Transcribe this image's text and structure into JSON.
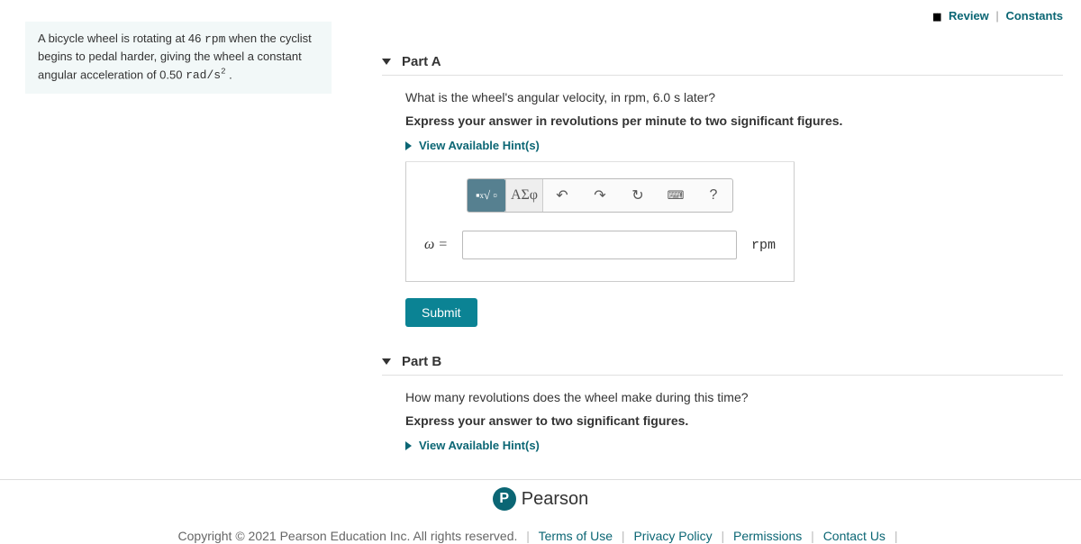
{
  "topLinks": {
    "review": "Review",
    "constants": "Constants"
  },
  "problem": {
    "html": "A bicycle wheel is rotating at 46 <span class='tt'>rpm</span> when the cyclist begins to pedal harder, giving the wheel a constant angular acceleration of 0.50 <span class='tt'>rad/s<sup>2</sup></span> ."
  },
  "partA": {
    "title": "Part A",
    "question": "What is the wheel's angular velocity, in rpm, 6.0 s later?",
    "instruction": "Express your answer in revolutions per minute to two significant figures.",
    "hintsLabel": "View Available Hint(s)",
    "toolbar": {
      "templates": "x√□",
      "greek": "ΑΣφ",
      "undo": "↶",
      "redo": "↷",
      "reset": "↻",
      "keyboard": "⌨",
      "help": "?"
    },
    "varLabel": "ω =",
    "unit": "rpm",
    "submit": "Submit"
  },
  "partB": {
    "title": "Part B",
    "question": "How many revolutions does the wheel make during this time?",
    "instruction": "Express your answer to two significant figures.",
    "hintsLabel": "View Available Hint(s)"
  },
  "footer": {
    "brand": "Pearson",
    "copyright": "Copyright © 2021 Pearson Education Inc. All rights reserved.",
    "terms": "Terms of Use",
    "privacy": "Privacy Policy",
    "permissions": "Permissions",
    "contact": "Contact Us"
  }
}
